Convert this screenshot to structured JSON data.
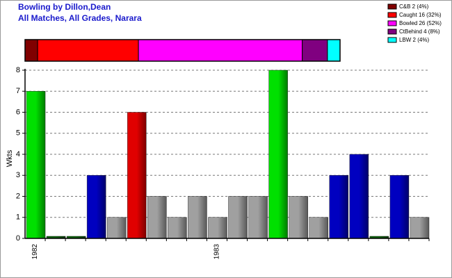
{
  "chart_data": [
    {
      "type": "stacked-hbar",
      "title": "Bowling by Dillon,Dean",
      "subtitle": "All Matches, All Grades, Narara",
      "legend": "top-right",
      "series": [
        {
          "name": "C&B 2 (4%)",
          "color": "#800000",
          "values": [
            2
          ]
        },
        {
          "name": "Caught 16 (32%)",
          "color": "#ff0000",
          "values": [
            16
          ]
        },
        {
          "name": "Bowled 26 (52%)",
          "color": "#ff00ff",
          "values": [
            26
          ]
        },
        {
          "name": "CtBehind 4 (8%)",
          "color": "#800080",
          "values": [
            4
          ]
        },
        {
          "name": "LBW 2 (4%)",
          "color": "#00ffff",
          "values": [
            2
          ]
        }
      ]
    },
    {
      "type": "bar",
      "y_label": "Wkts",
      "categories": [
        "1982",
        null,
        null,
        null,
        null,
        null,
        null,
        null,
        null,
        "1983",
        null,
        null,
        null,
        null,
        null,
        null,
        null,
        null,
        null,
        null
      ],
      "values": [
        7,
        0.1,
        0.1,
        3,
        1,
        6,
        2,
        1,
        2,
        1,
        2,
        2,
        8,
        2,
        1,
        3,
        4,
        0.1,
        3,
        1
      ],
      "colors": [
        "#00e000",
        "#006000",
        "#006000",
        "#0000c0",
        "#a0a0a0",
        "#e00000",
        "#a0a0a0",
        "#a0a0a0",
        "#a0a0a0",
        "#a0a0a0",
        "#a0a0a0",
        "#a0a0a0",
        "#00e000",
        "#a0a0a0",
        "#a0a0a0",
        "#0000c0",
        "#0000c0",
        "#006000",
        "#0000c0",
        "#a0a0a0"
      ],
      "ylim": [
        0,
        8
      ],
      "yticks": [
        0,
        1,
        2,
        3,
        4,
        5,
        6,
        7,
        8
      ],
      "grid": true
    }
  ]
}
